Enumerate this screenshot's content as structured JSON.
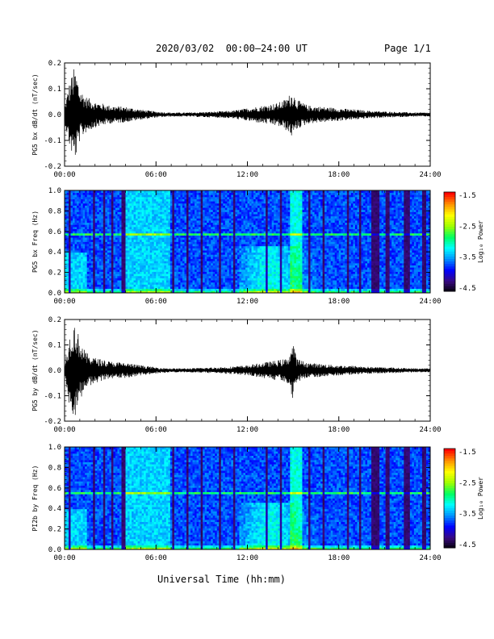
{
  "header": {
    "title": "2020/03/02  00:00–24:00 UT",
    "page": "Page 1/1"
  },
  "x_axis": {
    "label": "Universal Time (hh:mm)",
    "ticks": [
      "00:00",
      "06:00",
      "12:00",
      "18:00",
      "24:00"
    ],
    "range_hours": [
      0,
      24
    ]
  },
  "colorbar": {
    "label": "Log₁₀ Power",
    "ticks": [
      "-1.5",
      "-2.5",
      "-3.5",
      "-4.5"
    ],
    "range": [
      -4.5,
      -1.5
    ],
    "colors": [
      "#000000",
      "#3a0a80",
      "#0000ff",
      "#0090ff",
      "#00ffff",
      "#00ff60",
      "#a0ff00",
      "#ffff00",
      "#ff9000",
      "#ff0000"
    ]
  },
  "colors": {
    "trace": "#000000",
    "axis": "#000000"
  },
  "chart_data": [
    {
      "type": "line",
      "ylabel": "PG5 bx dB/dt (nT/sec)",
      "ylim": [
        -0.2,
        0.2
      ],
      "yticks": [
        "0.2",
        "0.1",
        "0.0",
        "-0.1",
        "-0.2"
      ],
      "envelope": {
        "x_hours": [
          0,
          0.3,
          0.6,
          0.8,
          1.0,
          1.4,
          2.0,
          3.0,
          4.0,
          5.0,
          6.0,
          7.0,
          8.0,
          9.0,
          10.0,
          11.0,
          12.0,
          12.5,
          13.0,
          13.5,
          14.0,
          14.5,
          14.8,
          15.0,
          15.2,
          15.5,
          16.0,
          17.0,
          18.0,
          19.0,
          20.0,
          21.0,
          22.0,
          23.0,
          24.0
        ],
        "amplitude": [
          0.03,
          0.12,
          0.18,
          0.16,
          0.1,
          0.07,
          0.05,
          0.035,
          0.03,
          0.02,
          0.012,
          0.008,
          0.008,
          0.01,
          0.012,
          0.015,
          0.025,
          0.03,
          0.035,
          0.04,
          0.045,
          0.06,
          0.08,
          0.09,
          0.06,
          0.05,
          0.035,
          0.03,
          0.025,
          0.02,
          0.015,
          0.012,
          0.01,
          0.008,
          0.008
        ]
      }
    },
    {
      "type": "heatmap",
      "ylabel": "PG5 bx Freq (Hz)",
      "ylim": [
        0,
        1.0
      ],
      "yticks": [
        "1.0",
        "0.8",
        "0.6",
        "0.4",
        "0.2",
        "0.0"
      ],
      "line_freq": 0.57
    },
    {
      "type": "line",
      "ylabel": "PG5 by dB/dt (nT/sec)",
      "ylim": [
        -0.2,
        0.2
      ],
      "yticks": [
        "0.2",
        "0.1",
        "0.0",
        "-0.1",
        "-0.2"
      ],
      "envelope": {
        "x_hours": [
          0,
          0.3,
          0.6,
          0.8,
          1.0,
          1.4,
          2.0,
          3.0,
          4.0,
          5.0,
          6.0,
          7.0,
          8.0,
          9.0,
          10.0,
          11.0,
          12.0,
          12.5,
          13.0,
          13.5,
          14.0,
          14.5,
          14.8,
          15.0,
          15.2,
          15.5,
          16.0,
          17.0,
          18.0,
          19.0,
          20.0,
          21.0,
          22.0,
          23.0,
          24.0
        ],
        "amplitude": [
          0.03,
          0.13,
          0.19,
          0.17,
          0.12,
          0.07,
          0.05,
          0.035,
          0.03,
          0.02,
          0.012,
          0.008,
          0.008,
          0.01,
          0.012,
          0.015,
          0.02,
          0.025,
          0.03,
          0.035,
          0.04,
          0.045,
          0.07,
          0.12,
          0.05,
          0.04,
          0.03,
          0.025,
          0.02,
          0.018,
          0.014,
          0.012,
          0.01,
          0.008,
          0.008
        ]
      }
    },
    {
      "type": "heatmap",
      "ylabel": "PI2b by Freq (Hz)",
      "ylim": [
        0,
        1.0
      ],
      "yticks": [
        "1.0",
        "0.8",
        "0.6",
        "0.4",
        "0.2",
        "0.0"
      ],
      "line_freq": 0.55
    }
  ]
}
